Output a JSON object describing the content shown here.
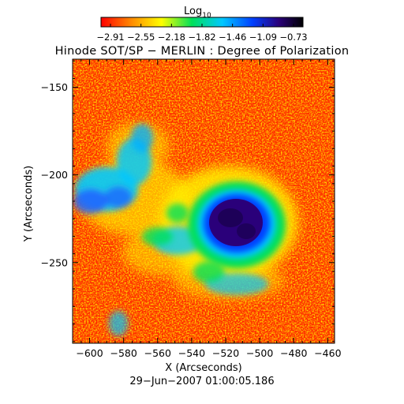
{
  "colorbar": {
    "label_main": "Log",
    "label_sub": "10",
    "ticks": [
      "−2.91",
      "−2.55",
      "−2.18",
      "−1.82",
      "−1.46",
      "−1.09",
      "−0.73"
    ],
    "range": [
      -2.91,
      -0.73
    ],
    "colormap": [
      "#ff0000",
      "#ff8a00",
      "#ffff00",
      "#00e05a",
      "#00c8ff",
      "#0040ff",
      "#2a007a",
      "#000000"
    ]
  },
  "title": "Hinode SOT/SP − MERLIN : Degree of Polarization",
  "xaxis": {
    "label": "X (Arcseconds)",
    "ticks": [
      "−600",
      "−580",
      "−560",
      "−540",
      "−520",
      "−500",
      "−480",
      "−460"
    ],
    "values": [
      -600,
      -580,
      -560,
      -540,
      -520,
      -500,
      -480,
      -460
    ],
    "range": [
      -610,
      -456
    ]
  },
  "yaxis": {
    "label": "Y (Arcseconds)",
    "ticks": [
      "−150",
      "−200",
      "−250"
    ],
    "values": [
      -150,
      -200,
      -250
    ],
    "range": [
      -296,
      -134
    ]
  },
  "timestamp": "29−Jun−2007 01:00:05.186",
  "features": {
    "sunspot_center": [
      -520,
      -225
    ],
    "background": "#ff2a00",
    "sunspot_umbra": "#2a007a"
  }
}
